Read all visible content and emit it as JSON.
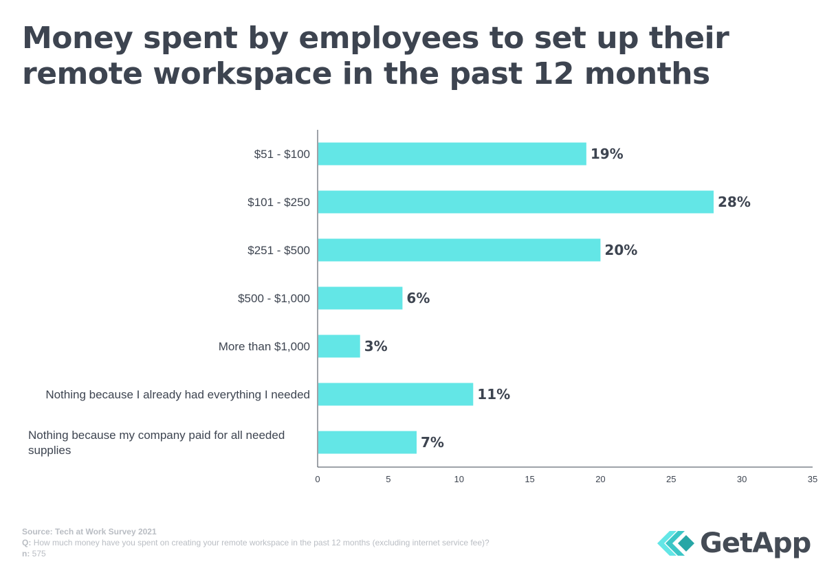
{
  "title": "Money spent by employees to set up their remote workspace in the past 12 months",
  "chart_data": {
    "type": "bar",
    "orientation": "horizontal",
    "title": "Money spent by employees to set up their remote workspace in the past 12 months",
    "categories": [
      "$51 - $100",
      "$101 - $250",
      "$251 - $500",
      "$500 - $1,000",
      "More than $1,000",
      "Nothing because I already had everything I needed",
      "Nothing because my company paid for all needed supplies"
    ],
    "values": [
      19,
      28,
      20,
      6,
      3,
      11,
      7
    ],
    "value_labels": [
      "19%",
      "28%",
      "20%",
      "6%",
      "3%",
      "11%",
      "7%"
    ],
    "xlim": [
      0,
      35
    ],
    "xticks": [
      0,
      5,
      10,
      15,
      20,
      25,
      30,
      35
    ],
    "xlabel": "",
    "ylabel": "",
    "bar_color": "#63e6e6",
    "grid": false
  },
  "footer": {
    "source_label": "Source:",
    "source": "Tech at Work Survey 2021",
    "q_label": "Q:",
    "question": "How much money have you spent on creating your remote workspace in the past 12 months (excluding internet service fee)?",
    "n_label": "n:",
    "n": "575"
  },
  "logo": {
    "text": "GetApp",
    "icon": "getapp-chevron-icon",
    "color_light": "#63e6e6",
    "color_dark": "#27a6a6"
  }
}
